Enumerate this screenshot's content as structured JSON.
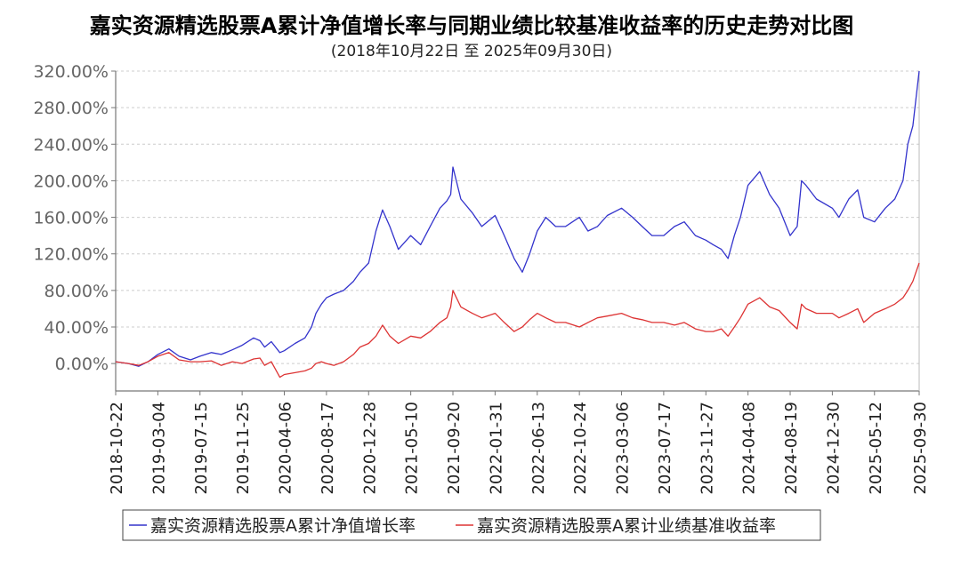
{
  "chart_data": {
    "type": "line",
    "title": "嘉实资源精选股票A累计净值增长率与同期业绩比较基准收益率的历史走势对比图",
    "subtitle": "(2018年10月22日 至 2025年09月30日)",
    "xlabel": "",
    "ylabel": "",
    "ylim": [
      -30,
      320
    ],
    "y_ticks": [
      "0.00%",
      "40.00%",
      "80.00%",
      "120.00%",
      "160.00%",
      "200.00%",
      "240.00%",
      "280.00%",
      "320.00%"
    ],
    "y_tick_values": [
      0,
      40,
      80,
      120,
      160,
      200,
      240,
      280,
      320
    ],
    "x_ticks": [
      "2018-10-22",
      "2019-03-04",
      "2019-07-15",
      "2019-11-25",
      "2020-04-06",
      "2020-08-17",
      "2020-12-28",
      "2021-05-10",
      "2021-09-20",
      "2022-01-31",
      "2022-06-13",
      "2022-10-24",
      "2023-03-06",
      "2023-07-17",
      "2023-11-27",
      "2024-04-08",
      "2024-08-19",
      "2024-12-30",
      "2025-05-12",
      "2025-09-30"
    ],
    "grid": true,
    "legend_position": "bottom",
    "series": [
      {
        "name": "嘉实资源精选股票A累计净值增长率",
        "color": "#3333cc",
        "x": [
          "2018-10-22",
          "2018-12-01",
          "2019-01-03",
          "2019-02-01",
          "2019-03-04",
          "2019-04-08",
          "2019-05-10",
          "2019-06-15",
          "2019-07-15",
          "2019-08-20",
          "2019-09-20",
          "2019-10-25",
          "2019-11-25",
          "2019-12-31",
          "2020-01-20",
          "2020-02-04",
          "2020-02-25",
          "2020-03-23",
          "2020-04-06",
          "2020-05-10",
          "2020-06-10",
          "2020-07-01",
          "2020-07-15",
          "2020-08-01",
          "2020-08-17",
          "2020-09-10",
          "2020-10-10",
          "2020-11-10",
          "2020-12-01",
          "2020-12-28",
          "2021-01-20",
          "2021-02-10",
          "2021-03-05",
          "2021-04-01",
          "2021-05-10",
          "2021-06-10",
          "2021-07-10",
          "2021-08-10",
          "2021-09-01",
          "2021-09-13",
          "2021-09-20",
          "2021-10-15",
          "2021-11-20",
          "2021-12-20",
          "2022-01-31",
          "2022-03-01",
          "2022-04-01",
          "2022-04-27",
          "2022-05-20",
          "2022-06-13",
          "2022-07-10",
          "2022-08-10",
          "2022-09-10",
          "2022-10-24",
          "2022-11-20",
          "2022-12-20",
          "2023-01-20",
          "2023-03-06",
          "2023-04-10",
          "2023-05-10",
          "2023-06-10",
          "2023-07-17",
          "2023-08-20",
          "2023-09-20",
          "2023-10-25",
          "2023-11-27",
          "2023-12-20",
          "2024-01-15",
          "2024-02-05",
          "2024-02-25",
          "2024-03-15",
          "2024-04-08",
          "2024-05-15",
          "2024-06-15",
          "2024-07-15",
          "2024-08-19",
          "2024-09-10",
          "2024-09-24",
          "2024-10-08",
          "2024-11-10",
          "2024-12-30",
          "2025-01-20",
          "2025-02-20",
          "2025-03-20",
          "2025-04-08",
          "2025-05-12",
          "2025-06-15",
          "2025-07-15",
          "2025-08-10",
          "2025-08-25",
          "2025-09-10",
          "2025-09-20",
          "2025-09-30"
        ],
        "y": [
          2,
          0,
          -3,
          2,
          10,
          16,
          8,
          4,
          8,
          12,
          10,
          15,
          20,
          28,
          25,
          18,
          24,
          12,
          14,
          22,
          28,
          40,
          55,
          65,
          72,
          76,
          80,
          90,
          100,
          110,
          145,
          168,
          150,
          125,
          140,
          130,
          150,
          170,
          178,
          185,
          215,
          180,
          165,
          150,
          162,
          140,
          115,
          100,
          120,
          145,
          160,
          150,
          150,
          160,
          145,
          150,
          162,
          170,
          160,
          150,
          140,
          140,
          150,
          155,
          140,
          135,
          130,
          125,
          115,
          140,
          160,
          195,
          210,
          185,
          170,
          140,
          150,
          200,
          195,
          180,
          170,
          160,
          180,
          190,
          160,
          155,
          170,
          180,
          200,
          240,
          260,
          290,
          320
        ]
      },
      {
        "name": "嘉实资源精选股票A累计业绩基准收益率",
        "color": "#dd3333",
        "x": [
          "2018-10-22",
          "2018-12-01",
          "2019-01-03",
          "2019-02-01",
          "2019-03-04",
          "2019-04-08",
          "2019-05-10",
          "2019-06-15",
          "2019-07-15",
          "2019-08-20",
          "2019-09-20",
          "2019-10-25",
          "2019-11-25",
          "2019-12-31",
          "2020-01-20",
          "2020-02-04",
          "2020-02-25",
          "2020-03-23",
          "2020-04-06",
          "2020-05-10",
          "2020-06-10",
          "2020-07-01",
          "2020-07-15",
          "2020-08-01",
          "2020-08-17",
          "2020-09-10",
          "2020-10-10",
          "2020-11-10",
          "2020-12-01",
          "2020-12-28",
          "2021-01-20",
          "2021-02-10",
          "2021-03-05",
          "2021-04-01",
          "2021-05-10",
          "2021-06-10",
          "2021-07-10",
          "2021-08-10",
          "2021-09-01",
          "2021-09-13",
          "2021-09-20",
          "2021-10-15",
          "2021-11-20",
          "2021-12-20",
          "2022-01-31",
          "2022-03-01",
          "2022-04-01",
          "2022-04-27",
          "2022-05-20",
          "2022-06-13",
          "2022-07-10",
          "2022-08-10",
          "2022-09-10",
          "2022-10-24",
          "2022-11-20",
          "2022-12-20",
          "2023-01-20",
          "2023-03-06",
          "2023-04-10",
          "2023-05-10",
          "2023-06-10",
          "2023-07-17",
          "2023-08-20",
          "2023-09-20",
          "2023-10-25",
          "2023-11-27",
          "2023-12-20",
          "2024-01-15",
          "2024-02-05",
          "2024-02-25",
          "2024-03-15",
          "2024-04-08",
          "2024-05-15",
          "2024-06-15",
          "2024-07-15",
          "2024-08-19",
          "2024-09-10",
          "2024-09-24",
          "2024-10-08",
          "2024-11-10",
          "2024-12-30",
          "2025-01-20",
          "2025-02-20",
          "2025-03-20",
          "2025-04-08",
          "2025-05-12",
          "2025-06-15",
          "2025-07-15",
          "2025-08-10",
          "2025-08-25",
          "2025-09-10",
          "2025-09-20",
          "2025-09-30"
        ],
        "y": [
          2,
          0,
          -2,
          2,
          8,
          12,
          4,
          2,
          2,
          3,
          -2,
          2,
          0,
          5,
          6,
          -2,
          2,
          -15,
          -12,
          -10,
          -8,
          -5,
          0,
          2,
          0,
          -2,
          2,
          10,
          18,
          22,
          30,
          42,
          30,
          22,
          30,
          28,
          35,
          45,
          50,
          62,
          80,
          62,
          55,
          50,
          55,
          45,
          35,
          40,
          48,
          55,
          50,
          45,
          45,
          40,
          45,
          50,
          52,
          55,
          50,
          48,
          45,
          45,
          42,
          45,
          38,
          35,
          35,
          38,
          30,
          40,
          50,
          65,
          72,
          62,
          58,
          45,
          38,
          65,
          60,
          55,
          55,
          50,
          55,
          60,
          45,
          55,
          60,
          65,
          72,
          80,
          90,
          100,
          110
        ]
      }
    ]
  }
}
